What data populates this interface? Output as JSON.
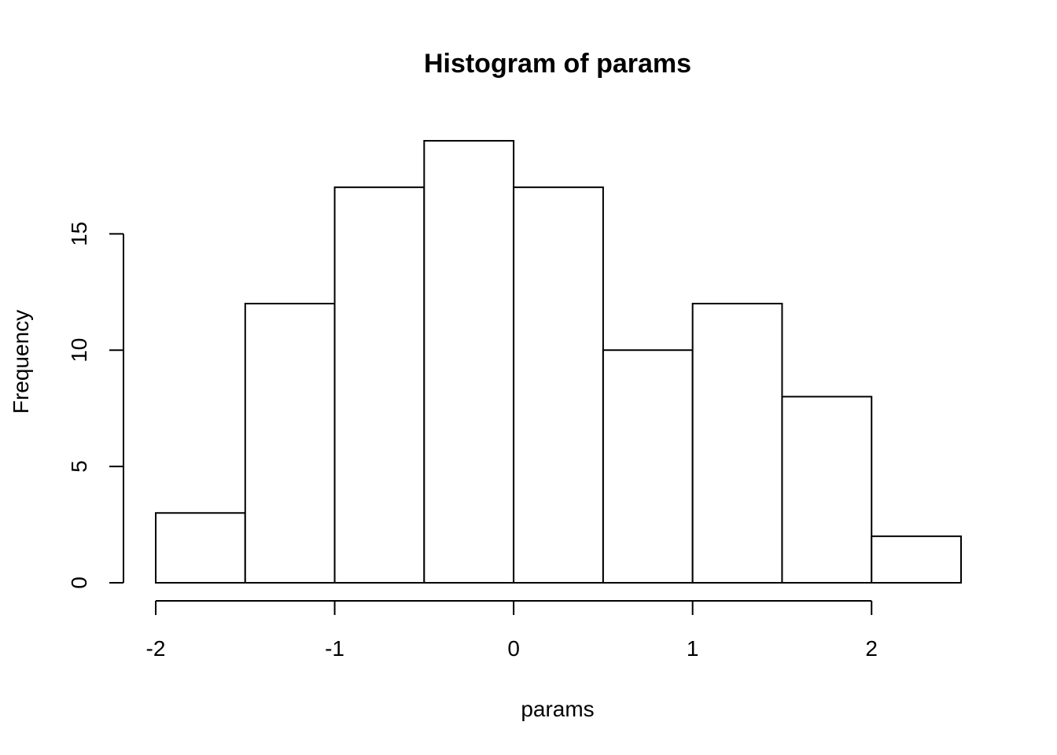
{
  "chart_data": {
    "type": "bar",
    "title": "Histogram of params",
    "xlabel": "params",
    "ylabel": "Frequency",
    "bin_edges": [
      -2,
      -1.5,
      -1,
      -0.5,
      0,
      0.5,
      1,
      1.5,
      2,
      2.5
    ],
    "values": [
      3,
      12,
      17,
      19,
      17,
      10,
      12,
      8,
      2
    ],
    "xlim": [
      -2,
      2.5
    ],
    "ylim": [
      0,
      19
    ],
    "x_ticks": [
      -2,
      -1,
      0,
      1,
      2
    ],
    "x_tick_labels": [
      "-2",
      "-1",
      "0",
      "1",
      "2"
    ],
    "y_ticks": [
      0,
      5,
      10,
      15
    ],
    "y_tick_labels": [
      "0",
      "5",
      "10",
      "15"
    ],
    "grid": false,
    "colors": {
      "bar_fill": "#ffffff",
      "bar_stroke": "#000000"
    }
  }
}
